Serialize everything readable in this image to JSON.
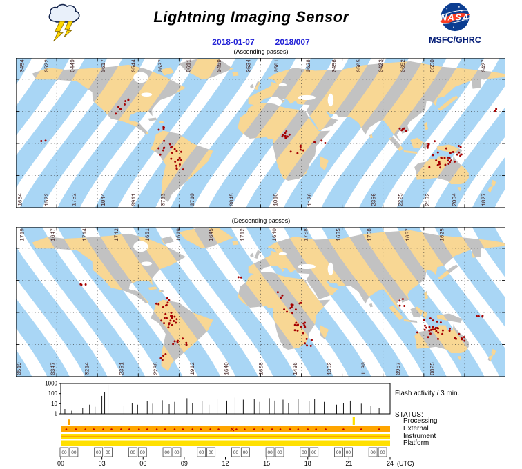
{
  "header": {
    "title": "Lightning Imaging Sensor",
    "date_iso": "2018-01-07",
    "date_doy": "2018/007",
    "org": "MSFC/GHRC",
    "nasa_label": "NASA"
  },
  "colors": {
    "swath_ocean": "#A9D6F5",
    "swath_land": "#F8D794",
    "land": "#C2C2C2",
    "flash_dot": "#A50000",
    "map_label": "#402020",
    "date_text": "#2121D6",
    "org_text": "#001A75",
    "nasa_blue": "#0B3D91",
    "nasa_red": "#FC3D21",
    "status_orange": "#FFA500",
    "status_yellow": "#FFE000"
  },
  "maps": [
    {
      "caption": "(Ascending passes)",
      "direction": "ascending",
      "top_labels": [
        {
          "t": "0454",
          "x": 0.012
        },
        {
          "t": "0522",
          "x": 0.062
        },
        {
          "t": "0449",
          "x": 0.115
        },
        {
          "t": "0617",
          "x": 0.178
        },
        {
          "t": "0544",
          "x": 0.24
        },
        {
          "t": "0637",
          "x": 0.295
        },
        {
          "t": "0611",
          "x": 0.352
        },
        {
          "t": "0459",
          "x": 0.415
        },
        {
          "t": "0534",
          "x": 0.475
        },
        {
          "t": "0501",
          "x": 0.532
        },
        {
          "t": "0628",
          "x": 0.597
        },
        {
          "t": "0456",
          "x": 0.65
        },
        {
          "t": "0505",
          "x": 0.7
        },
        {
          "t": "0423",
          "x": 0.745
        },
        {
          "t": "0652",
          "x": 0.79
        },
        {
          "t": "0550",
          "x": 0.85
        },
        {
          "t": "0427",
          "x": 0.955
        }
      ],
      "bottom_labels": [
        {
          "t": "1654",
          "x": 0.008
        },
        {
          "t": "1522",
          "x": 0.062
        },
        {
          "t": "1752",
          "x": 0.118
        },
        {
          "t": "1044",
          "x": 0.178
        },
        {
          "t": "0911",
          "x": 0.24
        },
        {
          "t": "0733",
          "x": 0.3
        },
        {
          "t": "0710",
          "x": 0.36
        },
        {
          "t": "0845",
          "x": 0.44
        },
        {
          "t": "1018",
          "x": 0.53
        },
        {
          "t": "1126",
          "x": 0.6
        },
        {
          "t": "2356",
          "x": 0.73
        },
        {
          "t": "2225",
          "x": 0.785
        },
        {
          "t": "2132",
          "x": 0.84
        },
        {
          "t": "2004",
          "x": 0.895
        },
        {
          "t": "1827",
          "x": 0.955
        }
      ],
      "flash_clusters": [
        [
          0.225,
          0.3,
          5,
          0.012
        ],
        [
          0.205,
          0.36,
          3,
          0.01
        ],
        [
          0.3,
          0.48,
          4,
          0.012
        ],
        [
          0.315,
          0.62,
          16,
          0.022
        ],
        [
          0.33,
          0.72,
          7,
          0.015
        ],
        [
          0.055,
          0.55,
          2,
          0.008
        ],
        [
          0.555,
          0.52,
          8,
          0.015
        ],
        [
          0.575,
          0.62,
          6,
          0.013
        ],
        [
          0.62,
          0.57,
          3,
          0.01
        ],
        [
          0.79,
          0.47,
          5,
          0.013
        ],
        [
          0.845,
          0.58,
          6,
          0.014
        ],
        [
          0.87,
          0.67,
          22,
          0.024
        ],
        [
          0.91,
          0.63,
          7,
          0.014
        ],
        [
          0.975,
          0.36,
          2,
          0.008
        ]
      ]
    },
    {
      "caption": "(Descending passes)",
      "direction": "descending",
      "top_labels": [
        {
          "t": "1719",
          "x": 0.012
        },
        {
          "t": "1647",
          "x": 0.075
        },
        {
          "t": "1714",
          "x": 0.14
        },
        {
          "t": "1742",
          "x": 0.205
        },
        {
          "t": "1651",
          "x": 0.268
        },
        {
          "t": "1619",
          "x": 0.332
        },
        {
          "t": "1645",
          "x": 0.398
        },
        {
          "t": "1712",
          "x": 0.462
        },
        {
          "t": "1640",
          "x": 0.528
        },
        {
          "t": "1708",
          "x": 0.592
        },
        {
          "t": "1635",
          "x": 0.658
        },
        {
          "t": "1758",
          "x": 0.722
        },
        {
          "t": "1657",
          "x": 0.8
        },
        {
          "t": "1625",
          "x": 0.87
        }
      ],
      "bottom_labels": [
        {
          "t": "0519",
          "x": 0.006
        },
        {
          "t": "0347",
          "x": 0.075
        },
        {
          "t": "0214",
          "x": 0.145
        },
        {
          "t": "2351",
          "x": 0.215
        },
        {
          "t": "2238",
          "x": 0.285
        },
        {
          "t": "1912",
          "x": 0.36
        },
        {
          "t": "1640",
          "x": 0.43
        },
        {
          "t": "1608",
          "x": 0.5
        },
        {
          "t": "1436",
          "x": 0.57
        },
        {
          "t": "1302",
          "x": 0.64
        },
        {
          "t": "1130",
          "x": 0.71
        },
        {
          "t": "0957",
          "x": 0.78
        },
        {
          "t": "0825",
          "x": 0.85
        }
      ],
      "flash_clusters": [
        [
          0.14,
          0.38,
          3,
          0.01
        ],
        [
          0.3,
          0.52,
          8,
          0.015
        ],
        [
          0.318,
          0.63,
          18,
          0.022
        ],
        [
          0.335,
          0.77,
          8,
          0.016
        ],
        [
          0.302,
          0.88,
          4,
          0.012
        ],
        [
          0.545,
          0.45,
          4,
          0.012
        ],
        [
          0.565,
          0.55,
          10,
          0.016
        ],
        [
          0.582,
          0.67,
          12,
          0.018
        ],
        [
          0.6,
          0.78,
          6,
          0.013
        ],
        [
          0.455,
          0.35,
          2,
          0.008
        ],
        [
          0.79,
          0.5,
          4,
          0.012
        ],
        [
          0.855,
          0.67,
          26,
          0.026
        ],
        [
          0.9,
          0.74,
          9,
          0.015
        ],
        [
          0.945,
          0.6,
          4,
          0.011
        ]
      ]
    }
  ],
  "chart_data": {
    "type": "spike-timeseries-with-status",
    "title": "Flash activity / 3 min.",
    "y_scale": "log",
    "ylim": [
      1,
      1000
    ],
    "y_ticks": [
      "1",
      "10",
      "100",
      "1000"
    ],
    "xlim_hours": [
      0,
      24
    ],
    "x_ticks": [
      "00",
      "03",
      "06",
      "09",
      "12",
      "15",
      "18",
      "21",
      "24"
    ],
    "x_unit": "(UTC)",
    "spikes_hour_value": [
      [
        0.3,
        3
      ],
      [
        0.8,
        2
      ],
      [
        1.6,
        4
      ],
      [
        2.1,
        8
      ],
      [
        2.5,
        5
      ],
      [
        3.0,
        60
      ],
      [
        3.2,
        150
      ],
      [
        3.45,
        800
      ],
      [
        3.6,
        250
      ],
      [
        3.8,
        90
      ],
      [
        4.1,
        20
      ],
      [
        4.6,
        6
      ],
      [
        5.2,
        12
      ],
      [
        5.6,
        8
      ],
      [
        6.3,
        18
      ],
      [
        6.7,
        10
      ],
      [
        7.4,
        22
      ],
      [
        7.9,
        9
      ],
      [
        8.3,
        15
      ],
      [
        9.2,
        35
      ],
      [
        9.6,
        12
      ],
      [
        10.3,
        18
      ],
      [
        10.8,
        8
      ],
      [
        11.4,
        30
      ],
      [
        12.1,
        20
      ],
      [
        12.4,
        300
      ],
      [
        12.7,
        40
      ],
      [
        13.3,
        25
      ],
      [
        14.1,
        30
      ],
      [
        14.5,
        15
      ],
      [
        15.2,
        35
      ],
      [
        15.6,
        20
      ],
      [
        16.2,
        25
      ],
      [
        16.6,
        12
      ],
      [
        17.3,
        28
      ],
      [
        18.1,
        18
      ],
      [
        18.5,
        30
      ],
      [
        19.2,
        15
      ],
      [
        20.1,
        8
      ],
      [
        20.6,
        12
      ],
      [
        21.1,
        20
      ],
      [
        21.9,
        10
      ],
      [
        22.6,
        6
      ],
      [
        23.2,
        4
      ]
    ],
    "status_header": "STATUS:",
    "status_rows": [
      {
        "label": "Processing",
        "band_color": "none",
        "events": [
          {
            "hour": 0.6,
            "color": "#FFA500",
            "height": 0.65
          },
          {
            "hour": 21.35,
            "color": "#FFE000",
            "height": 1.0
          }
        ]
      },
      {
        "label": "External",
        "band_color": "#FFA500",
        "mark_hours": [
          0.4,
          1.1,
          1.8,
          2.4,
          3.1,
          3.7,
          4.4,
          5.0,
          5.7,
          6.3,
          7.0,
          7.6,
          8.3,
          8.9,
          9.6,
          10.2,
          10.9,
          11.5,
          12.8,
          13.4,
          14.1,
          14.7,
          15.4,
          16.0,
          16.7,
          17.3,
          18.0,
          18.6,
          19.3,
          20.6,
          21.9,
          23.2
        ],
        "x_marker_hour": 12.5
      },
      {
        "label": "Instrument",
        "band_color": "#FFE000",
        "stripe_color": "#FFA500"
      },
      {
        "label": "Platform",
        "band_color": "#FFE000"
      }
    ],
    "orbit_box_label": "00",
    "orbit_box_hours": [
      0.25,
      0.95,
      2.75,
      3.45,
      5.25,
      5.95,
      7.75,
      8.45,
      10.25,
      10.95,
      12.75,
      13.45,
      15.25,
      15.95,
      17.75,
      18.45,
      20.25,
      20.95,
      22.75,
      23.45
    ]
  }
}
